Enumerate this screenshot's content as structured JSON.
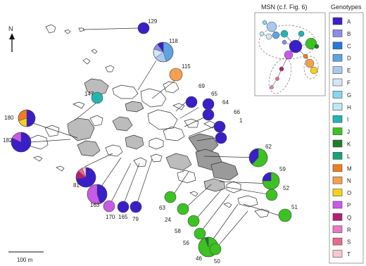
{
  "north_label": "N",
  "scale_label": "100 m",
  "msn": {
    "title": "MSN (c.f. Fig. 6)"
  },
  "legend": {
    "title": "Genotypes",
    "entries": [
      {
        "label": "A",
        "color": "#3a1fc8"
      },
      {
        "label": "B",
        "color": "#8c8ce6"
      },
      {
        "label": "C",
        "color": "#2a78d8"
      },
      {
        "label": "D",
        "color": "#5fa4e2"
      },
      {
        "label": "E",
        "color": "#a9c9ef"
      },
      {
        "label": "F",
        "color": "#d4e6f7"
      },
      {
        "label": "G",
        "color": "#88d4ef"
      },
      {
        "label": "H",
        "color": "#bde9f5"
      },
      {
        "label": "I",
        "color": "#22b5b0"
      },
      {
        "label": "J",
        "color": "#3cc222"
      },
      {
        "label": "K",
        "color": "#1e7a2c"
      },
      {
        "label": "L",
        "color": "#1aa078"
      },
      {
        "label": "M",
        "color": "#f07d1e"
      },
      {
        "label": "N",
        "color": "#f4a050"
      },
      {
        "label": "O",
        "color": "#f5d21e"
      },
      {
        "label": "P",
        "color": "#c85ae6"
      },
      {
        "label": "Q",
        "color": "#b41e78"
      },
      {
        "label": "R",
        "color": "#e87ac8"
      },
      {
        "label": "S",
        "color": "#e86a8c"
      },
      {
        "label": "T",
        "color": "#f7c8d2"
      }
    ]
  },
  "sites": [
    {
      "id": "129",
      "slices": [
        {
          "g": "A",
          "v": 1
        }
      ]
    },
    {
      "id": "118",
      "slices": [
        {
          "g": "D",
          "v": 0.45
        },
        {
          "g": "E",
          "v": 0.2
        },
        {
          "g": "F",
          "v": 0.15
        },
        {
          "g": "B",
          "v": 0.1
        },
        {
          "g": "A",
          "v": 0.1
        }
      ]
    },
    {
      "id": "115",
      "slices": [
        {
          "g": "N",
          "v": 1
        }
      ]
    },
    {
      "id": "147",
      "slices": [
        {
          "g": "I",
          "v": 1
        }
      ]
    },
    {
      "id": "69",
      "slices": [
        {
          "g": "A",
          "v": 1
        }
      ]
    },
    {
      "id": "65",
      "slices": [
        {
          "g": "A",
          "v": 1
        }
      ]
    },
    {
      "id": "64",
      "slices": [
        {
          "g": "A",
          "v": 1
        }
      ]
    },
    {
      "id": "66",
      "slices": [
        {
          "g": "A",
          "v": 1
        }
      ]
    },
    {
      "id": "1",
      "slices": [
        {
          "g": "A",
          "v": 1
        }
      ]
    },
    {
      "id": "180",
      "slices": [
        {
          "g": "A",
          "v": 0.5
        },
        {
          "g": "O",
          "v": 0.2
        },
        {
          "g": "M",
          "v": 0.3
        }
      ]
    },
    {
      "id": "182",
      "slices": [
        {
          "g": "A",
          "v": 0.82
        },
        {
          "g": "P",
          "v": 0.18
        }
      ]
    },
    {
      "id": "62",
      "slices": [
        {
          "g": "J",
          "v": 0.62
        },
        {
          "g": "A",
          "v": 0.38
        }
      ]
    },
    {
      "id": "59",
      "slices": [
        {
          "g": "J",
          "v": 0.75
        },
        {
          "g": "A",
          "v": 0.25
        }
      ]
    },
    {
      "id": "52",
      "slices": [
        {
          "g": "J",
          "v": 1
        }
      ]
    },
    {
      "id": "51",
      "slices": [
        {
          "g": "J",
          "v": 1
        }
      ]
    },
    {
      "id": "81",
      "slices": [
        {
          "g": "A",
          "v": 0.72
        },
        {
          "g": "Q",
          "v": 0.14
        },
        {
          "g": "S",
          "v": 0.08
        },
        {
          "g": "T",
          "v": 0.06
        }
      ]
    },
    {
      "id": "163",
      "slices": [
        {
          "g": "A",
          "v": 0.45
        },
        {
          "g": "P",
          "v": 0.55
        }
      ]
    },
    {
      "id": "170",
      "slices": [
        {
          "g": "P",
          "v": 1
        }
      ]
    },
    {
      "id": "165",
      "slices": [
        {
          "g": "A",
          "v": 1
        }
      ]
    },
    {
      "id": "79",
      "slices": [
        {
          "g": "A",
          "v": 1
        }
      ]
    },
    {
      "id": "63",
      "slices": [
        {
          "g": "J",
          "v": 1
        }
      ]
    },
    {
      "id": "24",
      "slices": [
        {
          "g": "J",
          "v": 1
        }
      ]
    },
    {
      "id": "58",
      "slices": [
        {
          "g": "J",
          "v": 1
        }
      ]
    },
    {
      "id": "56",
      "slices": [
        {
          "g": "J",
          "v": 1
        }
      ]
    },
    {
      "id": "46",
      "slices": [
        {
          "g": "J",
          "v": 0.94
        },
        {
          "g": "K",
          "v": 0.06
        }
      ]
    },
    {
      "id": "50",
      "slices": [
        {
          "g": "J",
          "v": 1
        }
      ]
    }
  ]
}
